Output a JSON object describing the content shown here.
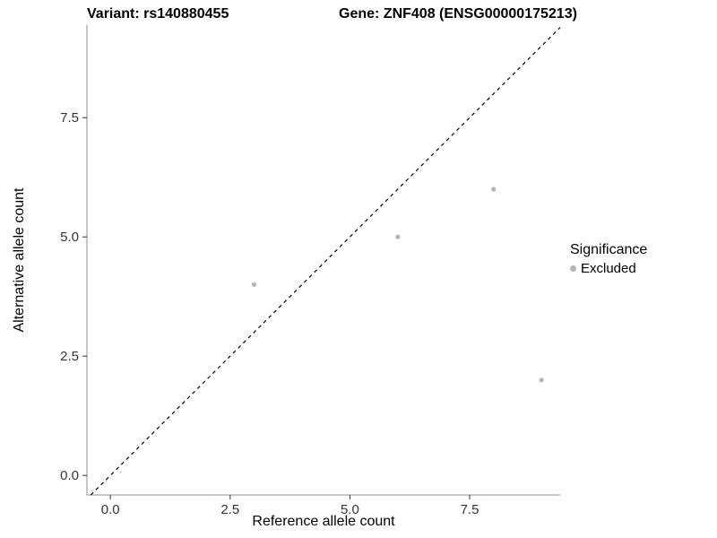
{
  "header": {
    "title_left": "Variant: rs140880455",
    "title_right": "Gene: ZNF408 (ENSG00000175213)"
  },
  "chart_data": {
    "type": "scatter",
    "title": "Variant: rs140880455 — Gene: ZNF408 (ENSG00000175213)",
    "xlabel": "Reference allele count",
    "ylabel": "Alternative allele count",
    "xlim": [
      -0.49,
      9.39
    ],
    "ylim": [
      -0.41,
      9.44
    ],
    "xticks": {
      "values": [
        0,
        2.5,
        5,
        7.5
      ],
      "labels": [
        "0.0",
        "2.5",
        "5.0",
        "7.5"
      ]
    },
    "yticks": {
      "values": [
        0,
        2.5,
        5,
        7.5
      ],
      "labels": [
        "0.0",
        "2.5",
        "5.0",
        "7.5"
      ]
    },
    "grid": false,
    "identity_line": {
      "style": "dashed",
      "slope": 1,
      "intercept": 0,
      "color": "#000000"
    },
    "series": [
      {
        "name": "Excluded",
        "color": "#b4b4b4",
        "points": [
          [
            3,
            4
          ],
          [
            6,
            5
          ],
          [
            8,
            6
          ],
          [
            9,
            2
          ]
        ]
      }
    ],
    "legend": {
      "title": "Significance",
      "position": "right",
      "entries": [
        {
          "label": "Excluded",
          "color": "#b4b4b4"
        }
      ]
    }
  },
  "colors": {
    "background": "#ffffff",
    "axis_line": "#8c8c8c",
    "tick_mark": "#333333",
    "tick_label": "#333333",
    "point": "#b4b4b4",
    "identity_line": "#000000"
  }
}
